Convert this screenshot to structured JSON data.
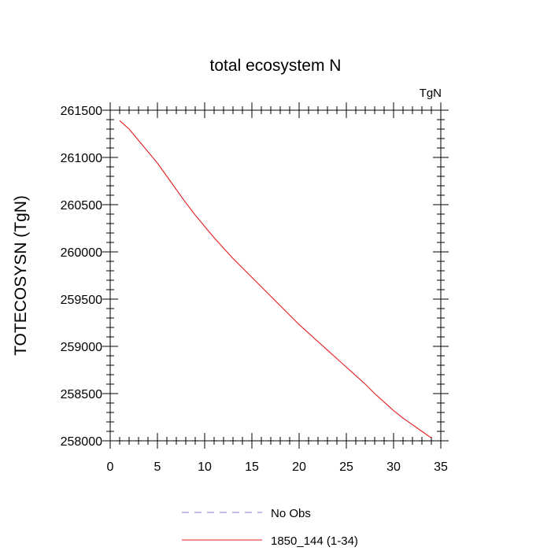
{
  "chart_data": {
    "type": "line",
    "title": "total ecosystem N",
    "units_label": "TgN",
    "xlabel": "",
    "ylabel": "TOTECOSYSN  (TgN)",
    "xlim": [
      0,
      35
    ],
    "ylim": [
      258000,
      261500
    ],
    "x_ticks": [
      "0",
      "5",
      "10",
      "15",
      "20",
      "25",
      "30",
      "35"
    ],
    "y_ticks": [
      "258000",
      "258500",
      "259000",
      "259500",
      "260000",
      "260500",
      "261000",
      "261500"
    ],
    "grid": false,
    "legend_position": "bottom-center",
    "series": [
      {
        "name": "No Obs",
        "color": "#7b7bd6",
        "style": "dashed",
        "x": [],
        "y": []
      },
      {
        "name": "1850_144 (1-34)",
        "color": "#e31a1c",
        "style": "solid",
        "x": [
          1,
          2,
          3,
          4,
          5,
          6,
          7,
          8,
          9,
          10,
          11,
          12,
          13,
          14,
          15,
          16,
          17,
          18,
          19,
          20,
          21,
          22,
          23,
          24,
          25,
          26,
          27,
          28,
          29,
          30,
          31,
          32,
          33,
          34
        ],
        "y": [
          261390,
          261300,
          261180,
          261060,
          260940,
          260800,
          260660,
          260520,
          260390,
          260270,
          260150,
          260040,
          259930,
          259830,
          259730,
          259630,
          259530,
          259430,
          259330,
          259230,
          259140,
          259050,
          258960,
          258870,
          258780,
          258690,
          258600,
          258500,
          258410,
          258320,
          258240,
          258170,
          258100,
          258030
        ]
      }
    ]
  }
}
